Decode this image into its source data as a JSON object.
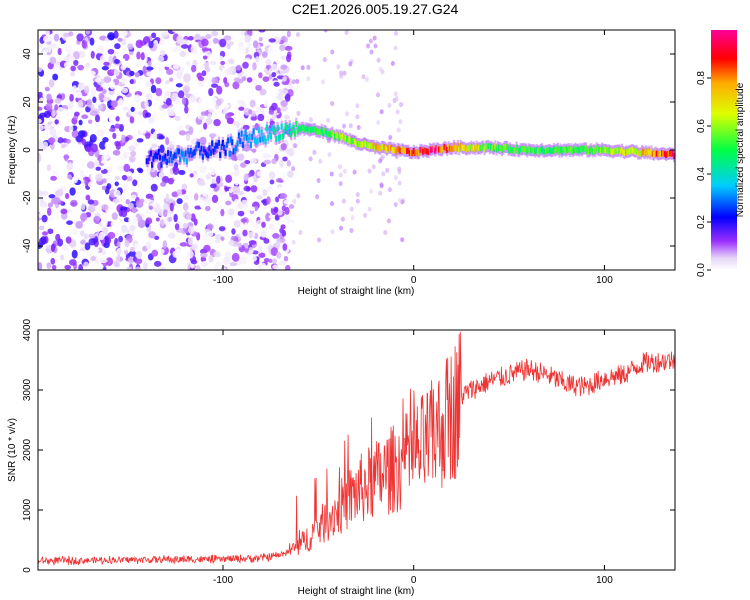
{
  "chart_data": [
    {
      "type": "heatmap",
      "title": "C2E1.2026.005.19.27.G24",
      "xlabel": "Height of straight line (km)",
      "ylabel": "Frequency (Hz)",
      "xlim": [
        -197,
        137
      ],
      "ylim": [
        -50,
        50
      ],
      "xticks": [
        -100,
        0,
        100
      ],
      "yticks": [
        -40,
        -20,
        0,
        20,
        40
      ],
      "colorbar": {
        "label": "Normalized spectral amplitude",
        "range": [
          0,
          1
        ],
        "ticks": [
          "0.0",
          "0.2",
          "0.4",
          "0.6",
          "0.8"
        ],
        "colormap": "rainbow (white-violet-blue-cyan-green-yellow-red-magenta)"
      },
      "ridge": {
        "x": [
          -140,
          -130,
          -120,
          -110,
          -100,
          -90,
          -80,
          -70,
          -60,
          -50,
          -40,
          -30,
          -20,
          -10,
          0,
          10,
          20,
          40,
          60,
          80,
          100,
          120,
          137
        ],
        "freq": [
          -4,
          -3,
          -2,
          0,
          0,
          4,
          6,
          8,
          9,
          8,
          6,
          3,
          1,
          0,
          -1,
          0,
          1,
          1,
          0,
          0,
          0,
          -1,
          -2
        ],
        "amplitude": [
          0.2,
          0.25,
          0.3,
          0.22,
          0.25,
          0.3,
          0.35,
          0.4,
          0.45,
          0.5,
          0.55,
          0.6,
          0.7,
          0.75,
          0.85,
          0.9,
          0.8,
          0.55,
          0.5,
          0.5,
          0.55,
          0.7,
          0.9
        ]
      },
      "noise_region_x": [
        -197,
        -64
      ],
      "grid": false
    },
    {
      "type": "line",
      "xlabel": "Height of straight line (km)",
      "ylabel": "SNR (10 * v/v)",
      "xlim": [
        -197,
        137
      ],
      "ylim": [
        0,
        4000
      ],
      "xticks": [
        -100,
        0,
        100
      ],
      "yticks": [
        0,
        1000,
        2000,
        3000,
        4000
      ],
      "color": "#ee3333",
      "trend": {
        "x": [
          -197,
          -150,
          -100,
          -80,
          -70,
          -60,
          -50,
          -40,
          -30,
          -20,
          -10,
          0,
          10,
          20,
          25,
          30,
          40,
          50,
          60,
          70,
          80,
          90,
          100,
          110,
          120,
          137
        ],
        "y": [
          150,
          170,
          180,
          200,
          250,
          400,
          700,
          1000,
          1300,
          1500,
          1700,
          1900,
          2200,
          2600,
          2900,
          3000,
          3150,
          3250,
          3350,
          3250,
          3100,
          3050,
          3200,
          3250,
          3450,
          3500
        ]
      },
      "grid": false
    }
  ]
}
